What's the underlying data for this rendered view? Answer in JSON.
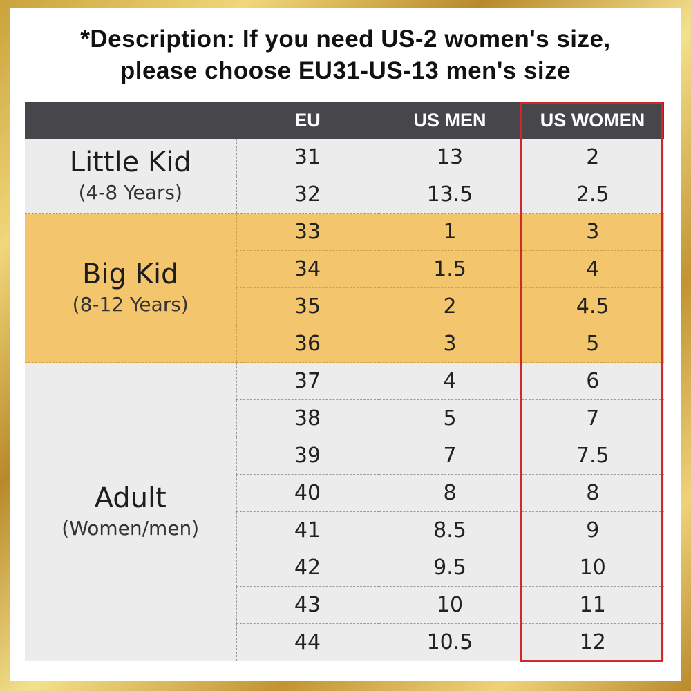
{
  "description": {
    "line1": "*Description: If you need US-2 women's size,",
    "line2": "please choose EU31-US-13 men's size"
  },
  "table": {
    "headers": [
      "",
      "EU",
      "US MEN",
      "US WOMEN"
    ],
    "groups": [
      {
        "name": "Little Kid",
        "ages": "(4-8 Years)",
        "rows": [
          {
            "eu": "31",
            "us_men": "13",
            "us_women": "2"
          },
          {
            "eu": "32",
            "us_men": "13.5",
            "us_women": "2.5"
          }
        ]
      },
      {
        "name": "Big Kid",
        "ages": "(8-12 Years)",
        "rows": [
          {
            "eu": "33",
            "us_men": "1",
            "us_women": "3"
          },
          {
            "eu": "34",
            "us_men": "1.5",
            "us_women": "4"
          },
          {
            "eu": "35",
            "us_men": "2",
            "us_women": "4.5"
          },
          {
            "eu": "36",
            "us_men": "3",
            "us_women": "5"
          }
        ]
      },
      {
        "name": "Adult",
        "ages": "(Women/men)",
        "rows": [
          {
            "eu": "37",
            "us_men": "4",
            "us_women": "6"
          },
          {
            "eu": "38",
            "us_men": "5",
            "us_women": "7"
          },
          {
            "eu": "39",
            "us_men": "7",
            "us_women": "7.5"
          },
          {
            "eu": "40",
            "us_men": "8",
            "us_women": "8"
          },
          {
            "eu": "41",
            "us_men": "8.5",
            "us_women": "9"
          },
          {
            "eu": "42",
            "us_men": "9.5",
            "us_women": "10"
          },
          {
            "eu": "43",
            "us_men": "10",
            "us_women": "11"
          },
          {
            "eu": "44",
            "us_men": "10.5",
            "us_women": "12"
          }
        ]
      }
    ]
  },
  "colors": {
    "header_bg": "#47474b",
    "big_kid_bg": "#f3c56d",
    "row_bg": "#ececec",
    "highlight_border": "#cf2a2a",
    "frame": "#d4aa44"
  }
}
